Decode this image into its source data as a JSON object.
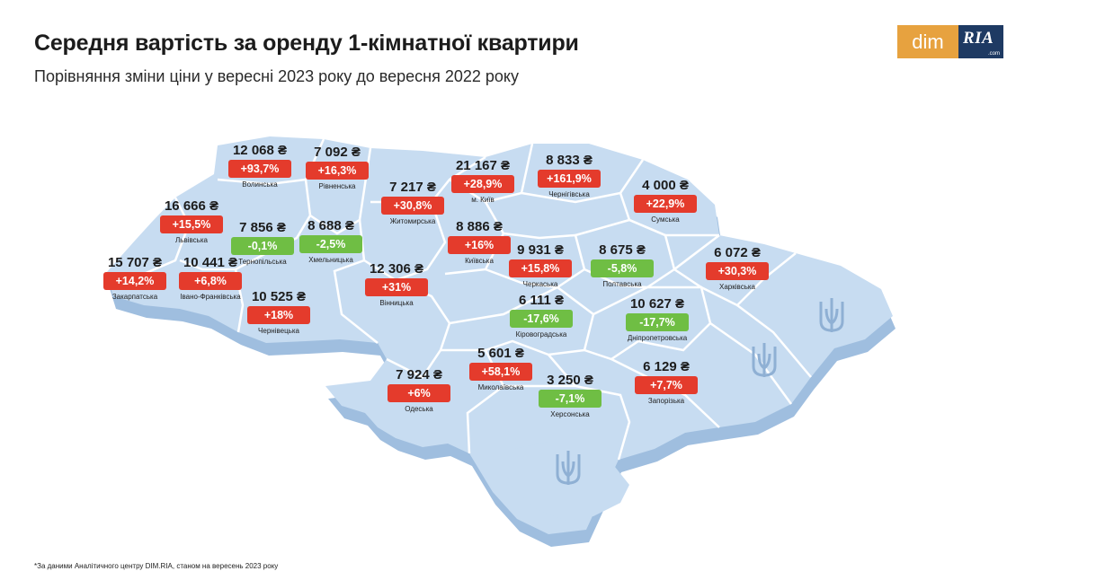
{
  "header": {
    "title": "Середня вартість за оренду 1-кімнатної квартири",
    "subtitle": "Порівняння зміни ціни у вересні 2023 року до вересня 2022 року"
  },
  "logo": {
    "left": "dim",
    "right": "RIA",
    "right_sub": ".com"
  },
  "colors": {
    "increase": "#e43b2c",
    "decrease": "#6fbe44",
    "map_fill": "#c7dcf1",
    "map_shadow": "#9fbedf",
    "border": "#ffffff"
  },
  "icons": [
    "trident-icon"
  ],
  "regions": [
    {
      "id": "volynska",
      "name": "Волинська",
      "price": "12 068 ₴",
      "change": "+93,7%",
      "trend": "up"
    },
    {
      "id": "rivnenska",
      "name": "Рівненська",
      "price": "7 092 ₴",
      "change": "+16,3%",
      "trend": "up"
    },
    {
      "id": "lvivska",
      "name": "Львівська",
      "price": "16 666 ₴",
      "change": "+15,5%",
      "trend": "up"
    },
    {
      "id": "ternopilska",
      "name": "Тернопільська",
      "price": "7 856 ₴",
      "change": "-0,1%",
      "trend": "down"
    },
    {
      "id": "khmelnytska",
      "name": "Хмельницька",
      "price": "8 688 ₴",
      "change": "-2,5%",
      "trend": "down"
    },
    {
      "id": "zakarpatska",
      "name": "Закарпатська",
      "price": "15 707 ₴",
      "change": "+14,2%",
      "trend": "up"
    },
    {
      "id": "ivano_frankivska",
      "name": "Івано-Франківська",
      "price": "10 441 ₴",
      "change": "+6,8%",
      "trend": "up"
    },
    {
      "id": "chernivetska",
      "name": "Чернівецька",
      "price": "10 525 ₴",
      "change": "+18%",
      "trend": "up"
    },
    {
      "id": "zhytomyrska",
      "name": "Житомирська",
      "price": "7 217 ₴",
      "change": "+30,8%",
      "trend": "up"
    },
    {
      "id": "kyiv_city",
      "name": "м. Київ",
      "price": "21 167 ₴",
      "change": "+28,9%",
      "trend": "up"
    },
    {
      "id": "kyivska",
      "name": "Київська",
      "price": "8 886 ₴",
      "change": "+16%",
      "trend": "up"
    },
    {
      "id": "vinnytska",
      "name": "Вінницька",
      "price": "12 306 ₴",
      "change": "+31%",
      "trend": "up"
    },
    {
      "id": "chernihivska",
      "name": "Чернігівська",
      "price": "8 833 ₴",
      "change": "+161,9%",
      "trend": "up"
    },
    {
      "id": "sumska",
      "name": "Сумська",
      "price": "4 000 ₴",
      "change": "+22,9%",
      "trend": "up"
    },
    {
      "id": "cherkaska",
      "name": "Черкаська",
      "price": "9 931 ₴",
      "change": "+15,8%",
      "trend": "up"
    },
    {
      "id": "poltavska",
      "name": "Полтавська",
      "price": "8 675 ₴",
      "change": "-5,8%",
      "trend": "down"
    },
    {
      "id": "kharkivska",
      "name": "Харківська",
      "price": "6 072 ₴",
      "change": "+30,3%",
      "trend": "up"
    },
    {
      "id": "kirovohradska",
      "name": "Кіровоградська",
      "price": "6 111 ₴",
      "change": "-17,6%",
      "trend": "down"
    },
    {
      "id": "dnipropetrovska",
      "name": "Дніпропетровська",
      "price": "10 627 ₴",
      "change": "-17,7%",
      "trend": "down"
    },
    {
      "id": "mykolaivska",
      "name": "Миколаївська",
      "price": "5 601 ₴",
      "change": "+58,1%",
      "trend": "up"
    },
    {
      "id": "odeska",
      "name": "Одеська",
      "price": "7 924 ₴",
      "change": "+6%",
      "trend": "up"
    },
    {
      "id": "khersonska",
      "name": "Херсонська",
      "price": "3 250 ₴",
      "change": "-7,1%",
      "trend": "down"
    },
    {
      "id": "zaporizka",
      "name": "Запорізька",
      "price": "6 129 ₴",
      "change": "+7,7%",
      "trend": "up"
    }
  ],
  "footnote": "*За даними Аналітичного центру DIM.RIA, станом на вересень 2023 року"
}
